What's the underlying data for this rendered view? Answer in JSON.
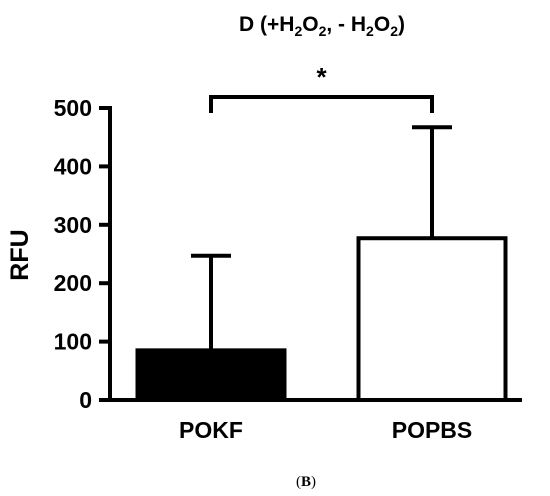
{
  "chart_data": {
    "type": "bar",
    "title": {
      "prefix": "D (+H",
      "sub1": "2",
      "mid1": "O",
      "sub2": "2",
      "mid2": ", - H",
      "sub3": "2",
      "mid3": "O",
      "sub4": "2",
      "suffix": ")"
    },
    "ylabel": "RFU",
    "xlabel": "",
    "ylim": [
      0,
      500
    ],
    "yticks": [
      0,
      100,
      200,
      300,
      400,
      500
    ],
    "categories": [
      "POKF",
      "POPBS"
    ],
    "values": [
      85,
      277
    ],
    "error_upper": [
      247,
      467
    ],
    "bar_fill": [
      "#000000",
      "#ffffff"
    ],
    "bar_stroke": "#000000",
    "significance": {
      "between": [
        "POKF",
        "POPBS"
      ],
      "label": "*"
    },
    "grid": false,
    "legend": "none"
  },
  "panel_label": {
    "open": "(",
    "letter": "B",
    "close": ")"
  }
}
